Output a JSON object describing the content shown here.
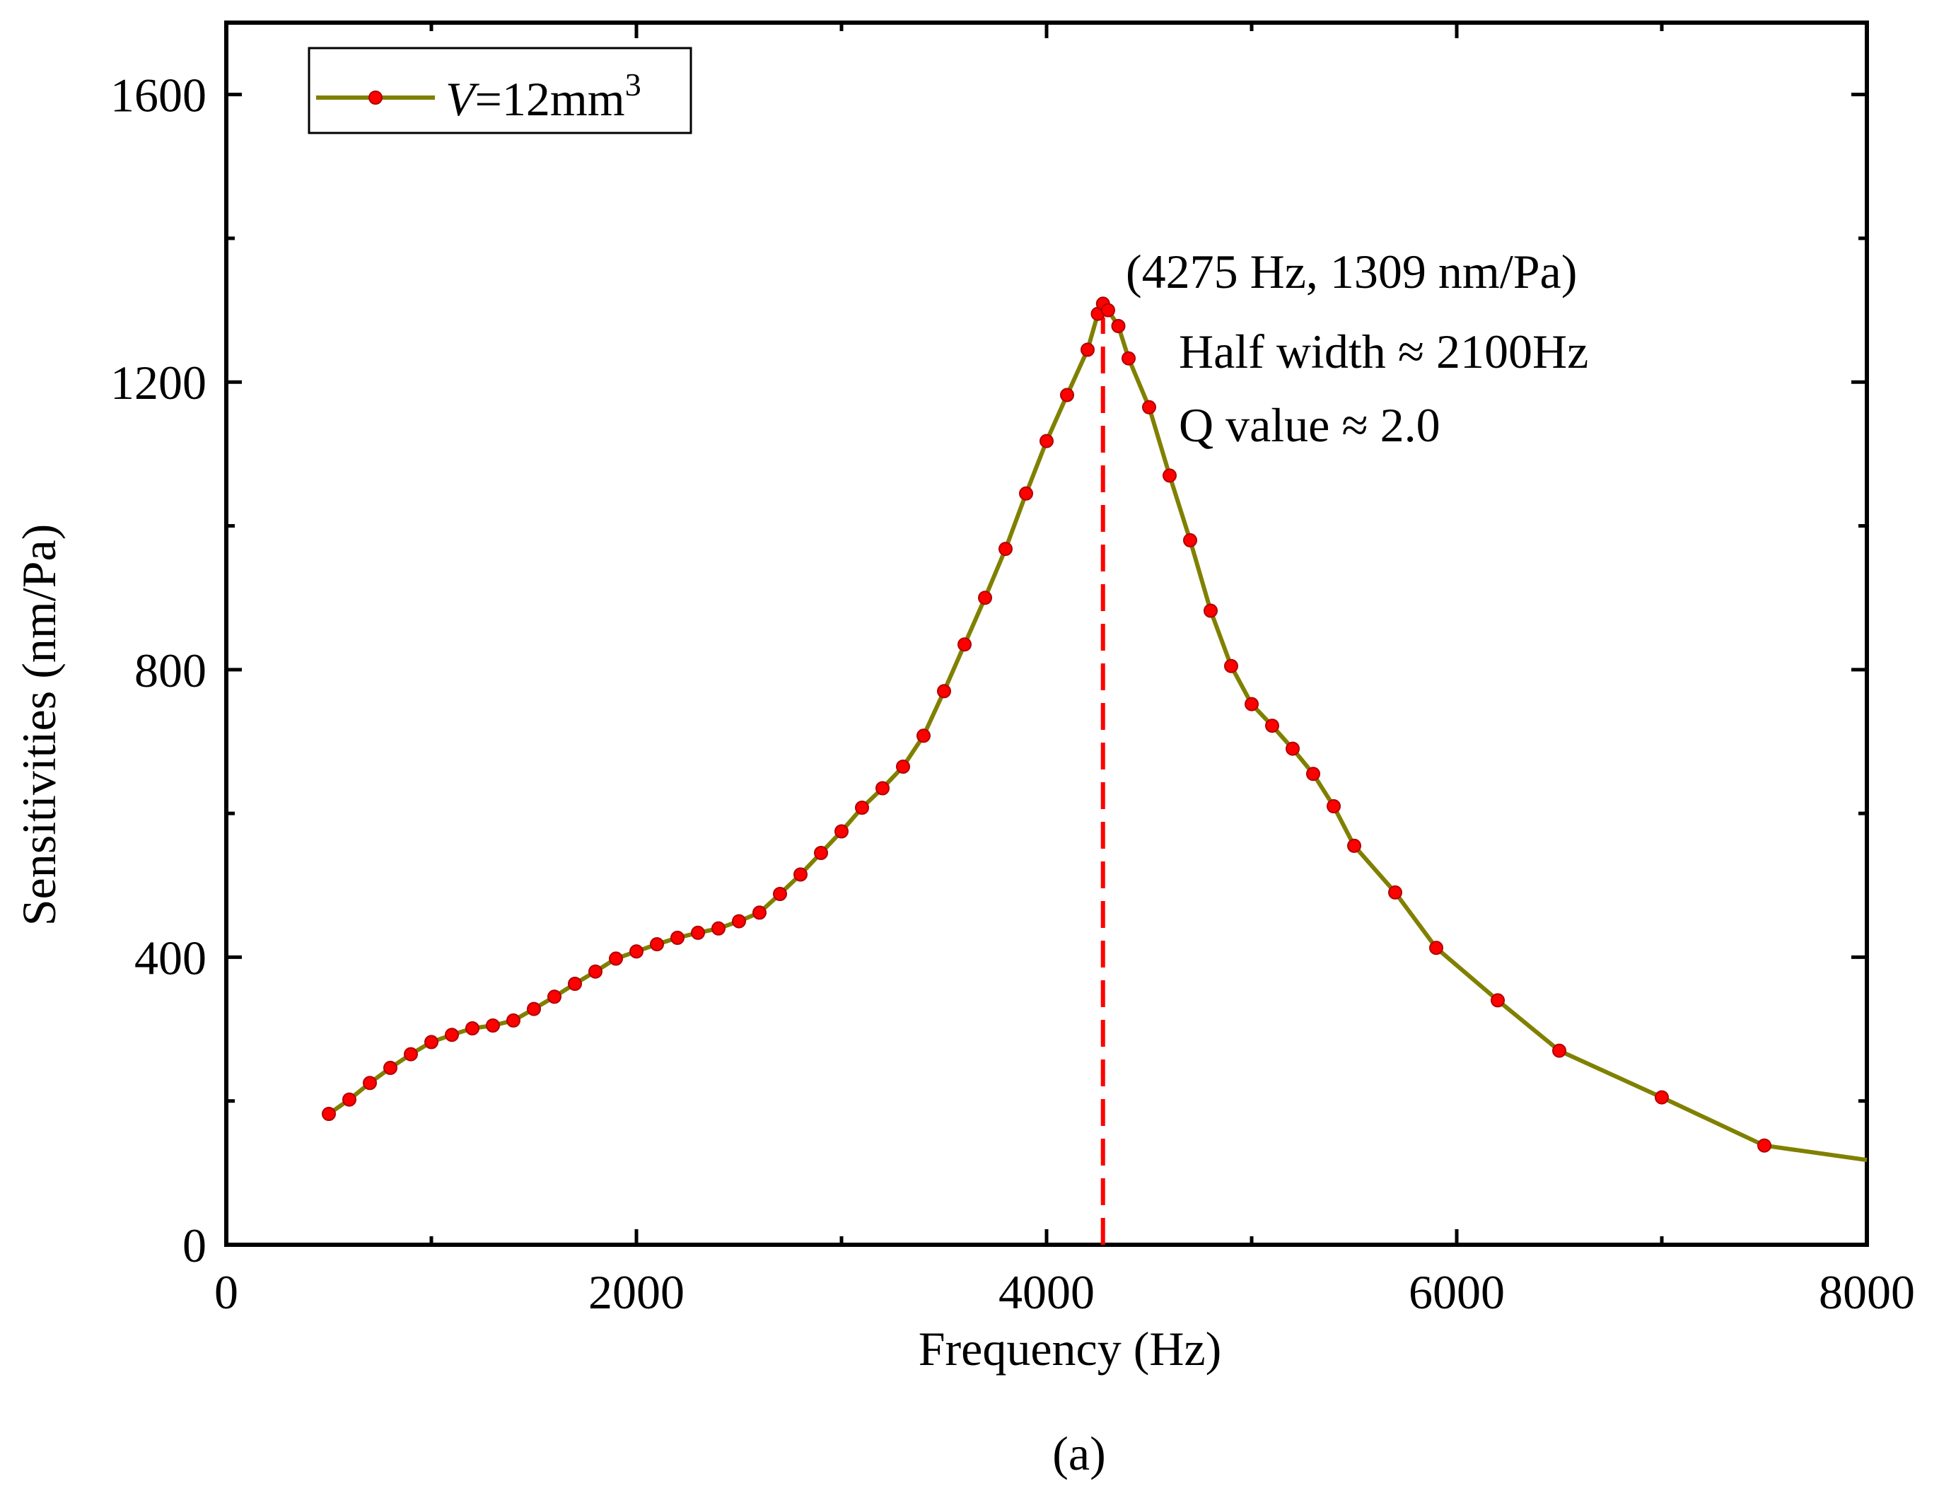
{
  "chart_data": {
    "type": "line",
    "title": "",
    "caption": "(a)",
    "xlabel": "Frequency (Hz)",
    "ylabel": "Sensitivities (nm/Pa)",
    "xlim": [
      0,
      8000
    ],
    "ylim": [
      0,
      1700
    ],
    "xticks": [
      0,
      2000,
      4000,
      6000,
      8000
    ],
    "yticks": [
      0,
      400,
      800,
      1200,
      1600
    ],
    "xtick_labels": [
      "0",
      "2000",
      "4000",
      "6000",
      "8000"
    ],
    "ytick_labels": [
      "0",
      "400",
      "800",
      "1200",
      "1600"
    ],
    "grid": false,
    "legend": {
      "position": "top-left",
      "var": "V",
      "text": "=12mm",
      "sup": "3"
    },
    "series": [
      {
        "name": "V=12mm3",
        "line_color": "#808000",
        "marker_color": "#ff0000",
        "x": [
          500,
          600,
          700,
          800,
          900,
          1000,
          1100,
          1200,
          1300,
          1400,
          1500,
          1600,
          1700,
          1800,
          1900,
          2000,
          2100,
          2200,
          2300,
          2400,
          2500,
          2600,
          2700,
          2800,
          2900,
          3000,
          3100,
          3200,
          3300,
          3400,
          3500,
          3600,
          3700,
          3800,
          3900,
          4000,
          4100,
          4200,
          4250,
          4275,
          4300,
          4350,
          4400,
          4500,
          4600,
          4700,
          4800,
          4900,
          5000,
          5100,
          5200,
          5300,
          5400,
          5500,
          5700,
          5900,
          6200,
          6500,
          7000,
          7500,
          8000
        ],
        "y": [
          182,
          202,
          225,
          246,
          265,
          282,
          292,
          301,
          305,
          312,
          328,
          345,
          363,
          380,
          398,
          408,
          418,
          427,
          434,
          440,
          450,
          462,
          488,
          515,
          545,
          575,
          608,
          635,
          665,
          708,
          770,
          835,
          900,
          968,
          1045,
          1118,
          1182,
          1245,
          1295,
          1309,
          1300,
          1278,
          1233,
          1165,
          1070,
          980,
          882,
          805,
          752,
          722,
          690,
          655,
          610,
          555,
          490,
          413,
          340,
          270,
          205,
          138,
          118
        ]
      }
    ],
    "annotation": {
      "peak_label": "(4275 Hz, 1309 nm/Pa)",
      "half_width": "Half width ≈ 2100Hz",
      "q_value": "Q value ≈ 2.0",
      "marker_x": 4275,
      "marker_color": "#ff0000"
    }
  }
}
